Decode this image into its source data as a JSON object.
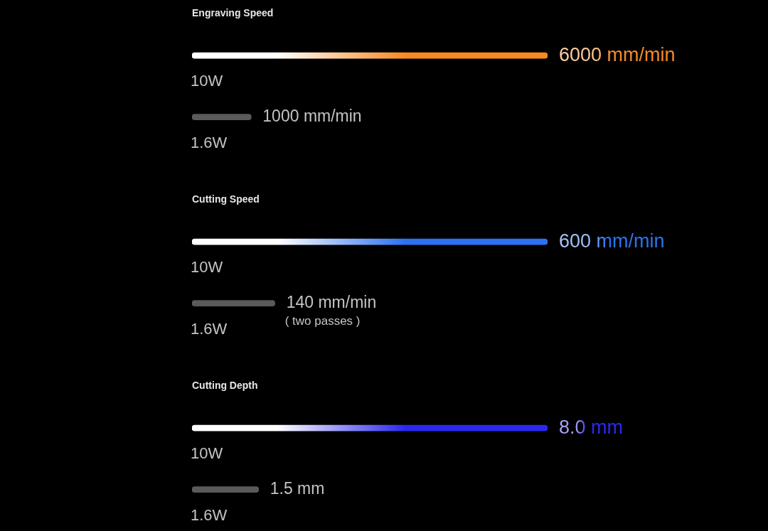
{
  "chart_data": [
    {
      "type": "bar",
      "title": "Engraving Speed",
      "orientation": "horizontal",
      "categories": [
        "10W",
        "1.6W"
      ],
      "values": [
        6000,
        1000
      ],
      "colors": [
        "#f58a23",
        "#5a5a5a"
      ],
      "value_labels": [
        "6000 mm/min",
        "1000 mm/min"
      ],
      "xlim": [
        0,
        6000
      ],
      "tick_labels": "y"
    },
    {
      "type": "bar",
      "title": "Cutting Speed",
      "orientation": "horizontal",
      "categories": [
        "10W",
        "1.6W"
      ],
      "values": [
        600,
        140
      ],
      "colors": [
        "#2b72f0",
        "#5a5a5a"
      ],
      "value_labels": [
        "600 mm/min",
        "140 mm/min"
      ],
      "xlim": [
        0,
        600
      ],
      "tick_labels": "y",
      "annotations": [
        "( two passes )"
      ]
    },
    {
      "type": "bar",
      "title": "Cutting Depth",
      "orientation": "horizontal",
      "categories": [
        "10W",
        "1.6W"
      ],
      "values": [
        8.0,
        1.5
      ],
      "colors": [
        "#2a28f0",
        "#5a5a5a"
      ],
      "value_labels": [
        "8.0 mm",
        "1.5 mm"
      ],
      "xlim": [
        0,
        8
      ],
      "tick_labels": "y"
    }
  ]
}
